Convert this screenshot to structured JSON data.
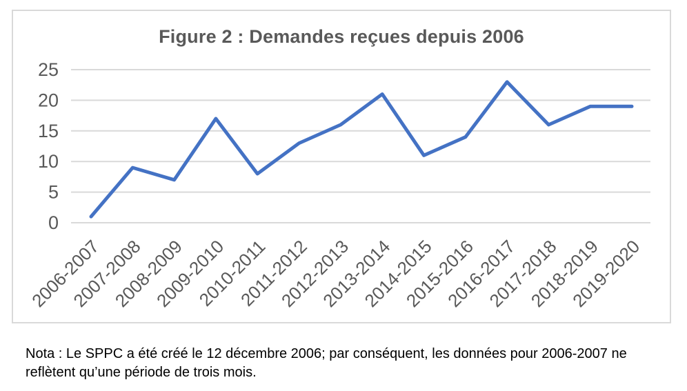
{
  "chart": {
    "title": "Figure 2 : Demandes reçues depuis 2006"
  },
  "chart_data": {
    "type": "line",
    "title": "Figure 2 : Demandes reçues depuis 2006",
    "categories": [
      "2006-2007",
      "2007-2008",
      "2008-2009",
      "2009-2010",
      "2010-2011",
      "2011-2012",
      "2012-2013",
      "2013-2014",
      "2014-2015",
      "2015-2016",
      "2016-2017",
      "2017-2018",
      "2018-2019",
      "2019-2020"
    ],
    "values": [
      1,
      9,
      7,
      17,
      8,
      13,
      16,
      21,
      11,
      14,
      23,
      16,
      19,
      19
    ],
    "xlabel": "",
    "ylabel": "",
    "ylim": [
      0,
      25
    ],
    "yticks": [
      0,
      5,
      10,
      15,
      20,
      25
    ],
    "grid": true,
    "legend": false,
    "line_width": 5
  },
  "note": {
    "text": "Nota : Le SPPC a été créé le 12 décembre 2006; par conséquent, les données pour 2006-2007 ne reflètent qu’une période de trois mois."
  },
  "colors": {
    "line": "#4472C4",
    "grid": "#D9D9D9",
    "frame_border": "#D9D9D9",
    "axis_labels": "#595959",
    "title": "#595959",
    "note_text": "#000000",
    "background": "#FFFFFF"
  }
}
